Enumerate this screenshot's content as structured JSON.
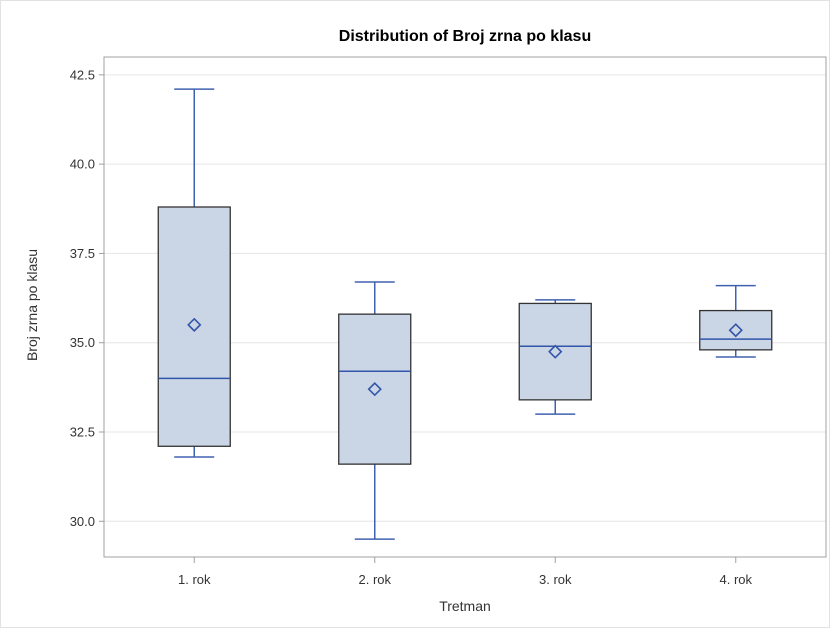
{
  "chart_data": {
    "type": "box",
    "title": "Distribution of Broj zrna po klasu",
    "xlabel": "Tretman",
    "ylabel": "Broj zrna po klasu",
    "ylim": [
      29.0,
      43.0
    ],
    "yticks": [
      30.0,
      32.5,
      35.0,
      37.5,
      40.0,
      42.5
    ],
    "ytick_labels": [
      "30.0",
      "32.5",
      "35.0",
      "37.5",
      "40.0",
      "42.5"
    ],
    "grid": true,
    "categories": [
      "1. rok",
      "2. rok",
      "3. rok",
      "4. rok"
    ],
    "boxes": [
      {
        "category": "1. rok",
        "min": 31.8,
        "q1": 32.1,
        "median": 34.0,
        "q3": 38.8,
        "max": 42.1,
        "mean": 35.5
      },
      {
        "category": "2. rok",
        "min": 29.5,
        "q1": 31.6,
        "median": 34.2,
        "q3": 35.8,
        "max": 36.7,
        "mean": 33.7
      },
      {
        "category": "3. rok",
        "min": 33.0,
        "q1": 33.4,
        "median": 34.9,
        "q3": 36.1,
        "max": 36.2,
        "mean": 34.75
      },
      {
        "category": "4. rok",
        "min": 34.6,
        "q1": 34.8,
        "median": 35.1,
        "q3": 35.9,
        "max": 36.6,
        "mean": 35.35
      }
    ],
    "colors": {
      "box_fill": "#cad5e5",
      "box_edge": "#333333",
      "whisker": "#4060b0",
      "median": "#3355aa",
      "mean_marker": "#3355aa",
      "grid": "#e6e6e6",
      "axis": "#a0a0a0"
    }
  }
}
